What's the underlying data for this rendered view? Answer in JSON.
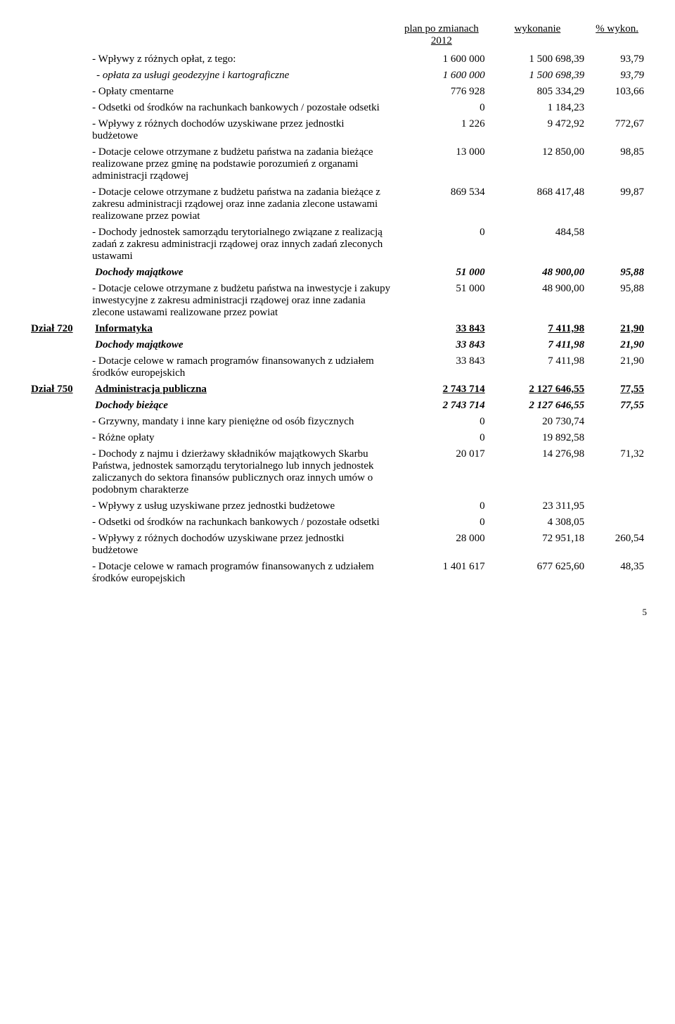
{
  "header": {
    "c1": "plan po zmianach 2012",
    "c2": "wykonanie",
    "c3": "% wykon."
  },
  "rows": [
    {
      "label": "",
      "text": "- Wpływy z różnych opłat, z tego:",
      "n1": "1 600 000",
      "n2": "1 500 698,39",
      "n3": "93,79",
      "cls": "indent1"
    },
    {
      "label": "",
      "text": "- opłata za usługi geodezyjne i kartograficzne",
      "n1": "1 600 000",
      "n2": "1 500 698,39",
      "n3": "93,79",
      "cls": "indent2 i"
    },
    {
      "label": "",
      "text": "- Opłaty cmentarne",
      "n1": "776 928",
      "n2": "805 334,29",
      "n3": "103,66",
      "cls": "indent1"
    },
    {
      "label": "",
      "text": "- Odsetki od środków na rachunkach bankowych / pozostałe odsetki",
      "n1": "0",
      "n2": "1 184,23",
      "n3": "",
      "cls": "indent1"
    },
    {
      "label": "",
      "text": "- Wpływy z różnych dochodów uzyskiwane przez jednostki budżetowe",
      "n1": "1 226",
      "n2": "9 472,92",
      "n3": "772,67",
      "cls": "indent1"
    },
    {
      "label": "",
      "text": "- Dotacje celowe otrzymane z budżetu państwa na zadania bieżące realizowane przez gminę na podstawie porozumień z organami administracji rządowej",
      "n1": "13 000",
      "n2": "12 850,00",
      "n3": "98,85",
      "cls": "indent1"
    },
    {
      "label": "",
      "text": "- Dotacje celowe otrzymane z budżetu państwa na zadania bieżące z zakresu administracji rządowej oraz inne zadania zlecone ustawami realizowane przez powiat",
      "n1": "869 534",
      "n2": "868 417,48",
      "n3": "99,87",
      "cls": "indent1"
    },
    {
      "label": "",
      "text": "- Dochody jednostek samorządu terytorialnego związane z realizacją zadań z zakresu administracji rządowej oraz innych zadań zleconych ustawami",
      "n1": "0",
      "n2": "484,58",
      "n3": "",
      "cls": "indent1"
    },
    {
      "label": "",
      "text": "Dochody majątkowe",
      "n1": "51 000",
      "n2": "48 900,00",
      "n3": "95,88",
      "cls": "b i"
    },
    {
      "label": "",
      "text": "- Dotacje celowe otrzymane z budżetu państwa na inwestycje i zakupy inwestycyjne z zakresu administracji rządowej oraz inne zadania zlecone ustawami realizowane przez powiat",
      "n1": "51 000",
      "n2": "48 900,00",
      "n3": "95,88",
      "cls": "indent1"
    },
    {
      "label": "Dział 720",
      "text": "Informatyka",
      "n1": "33 843",
      "n2": "7 411,98",
      "n3": "21,90",
      "cls": "b u",
      "labelcls": "section-label"
    },
    {
      "label": "",
      "text": "Dochody majątkowe",
      "n1": "33 843",
      "n2": "7 411,98",
      "n3": "21,90",
      "cls": "b i"
    },
    {
      "label": "",
      "text": "- Dotacje celowe w ramach programów finansowanych z udziałem środków europejskich",
      "n1": "33 843",
      "n2": "7 411,98",
      "n3": "21,90",
      "cls": "indent1"
    },
    {
      "label": "Dział 750",
      "text": "Administracja publiczna",
      "n1": "2 743 714",
      "n2": "2 127 646,55",
      "n3": "77,55",
      "cls": "b u",
      "labelcls": "section-label"
    },
    {
      "label": "",
      "text": "Dochody bieżące",
      "n1": "2 743 714",
      "n2": "2 127 646,55",
      "n3": "77,55",
      "cls": "b i"
    },
    {
      "label": "",
      "text": "- Grzywny, mandaty i inne kary pieniężne od osób fizycznych",
      "n1": "0",
      "n2": "20 730,74",
      "n3": "",
      "cls": "indent1"
    },
    {
      "label": "",
      "text": "- Różne opłaty",
      "n1": "0",
      "n2": "19 892,58",
      "n3": "",
      "cls": "indent1"
    },
    {
      "label": "",
      "text": "- Dochody z najmu i dzierżawy składników majątkowych Skarbu Państwa, jednostek samorządu terytorialnego lub innych jednostek zaliczanych do sektora finansów publicznych oraz innych umów o podobnym charakterze",
      "n1": "20 017",
      "n2": "14 276,98",
      "n3": "71,32",
      "cls": "indent1"
    },
    {
      "label": "",
      "text": "- Wpływy z usług uzyskiwane przez jednostki budżetowe",
      "n1": "0",
      "n2": "23 311,95",
      "n3": "",
      "cls": "indent1"
    },
    {
      "label": "",
      "text": "- Odsetki od środków na rachunkach bankowych / pozostałe odsetki",
      "n1": "0",
      "n2": "4 308,05",
      "n3": "",
      "cls": "indent1"
    },
    {
      "label": "",
      "text": "- Wpływy z różnych dochodów uzyskiwane przez jednostki budżetowe",
      "n1": "28 000",
      "n2": "72 951,18",
      "n3": "260,54",
      "cls": "indent1"
    },
    {
      "label": "",
      "text": "- Dotacje celowe w ramach programów finansowanych z udziałem środków europejskich",
      "n1": "1 401 617",
      "n2": "677 625,60",
      "n3": "48,35",
      "cls": "indent1"
    }
  ],
  "pageNumber": "5"
}
